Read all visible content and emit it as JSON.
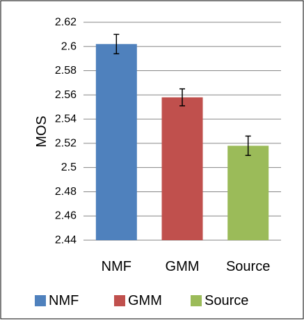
{
  "chart_data": {
    "type": "bar",
    "title": "",
    "xlabel": "",
    "ylabel": "MOS",
    "categories": [
      "NMF",
      "GMM",
      "Source"
    ],
    "series": [
      {
        "name": "NMF",
        "category": "NMF",
        "value": 2.602,
        "error": 0.008,
        "color": "#4F81BD"
      },
      {
        "name": "GMM",
        "category": "GMM",
        "value": 2.558,
        "error": 0.007,
        "color": "#C0504D"
      },
      {
        "name": "Source",
        "category": "Source",
        "value": 2.518,
        "error": 0.008,
        "color": "#9BBB59"
      }
    ],
    "ylim": [
      2.44,
      2.62
    ],
    "yticks": [
      "2.44",
      "2.46",
      "2.48",
      "2.5",
      "2.52",
      "2.54",
      "2.56",
      "2.58",
      "2.6",
      "2.62"
    ],
    "grid": true,
    "legend_position": "bottom"
  }
}
